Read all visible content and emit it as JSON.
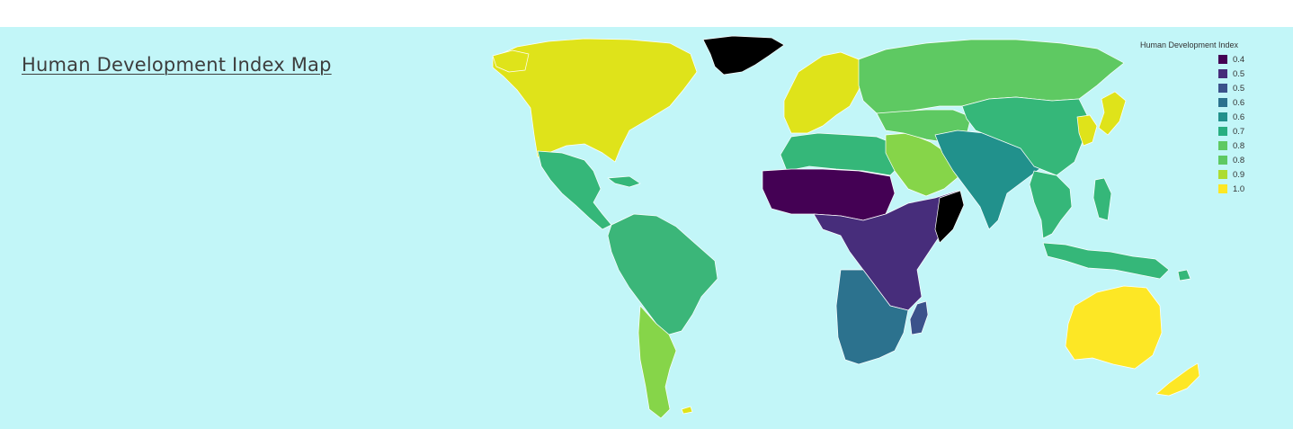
{
  "map": {
    "title": "Human Development Index Map",
    "background_color": "#c2f6f8",
    "no_data_color": "#000000",
    "border_color": "#ffffff"
  },
  "legend": {
    "title": "Human Development Index",
    "items": [
      {
        "label": "0.4",
        "color": "#440154"
      },
      {
        "label": "0.5",
        "color": "#472d7b"
      },
      {
        "label": "0.5",
        "color": "#3b528b"
      },
      {
        "label": "0.6",
        "color": "#2c728e"
      },
      {
        "label": "0.6",
        "color": "#21918c"
      },
      {
        "label": "0.7",
        "color": "#28ae80"
      },
      {
        "label": "0.8",
        "color": "#5ec962"
      },
      {
        "label": "0.8",
        "color": "#5ec962"
      },
      {
        "label": "0.9",
        "color": "#addc30"
      },
      {
        "label": "1.0",
        "color": "#fde725"
      }
    ]
  },
  "regions": [
    {
      "name": "North America",
      "color": "#dfe31a"
    },
    {
      "name": "Greenland",
      "color": "#000000"
    },
    {
      "name": "Mexico and Central America",
      "color": "#35b779"
    },
    {
      "name": "South America",
      "color": "#3bb679"
    },
    {
      "name": "Southern Cone",
      "color": "#86d549"
    },
    {
      "name": "Western Europe",
      "color": "#dfe31a"
    },
    {
      "name": "Russia",
      "color": "#5ec962"
    },
    {
      "name": "North Africa",
      "color": "#35b779"
    },
    {
      "name": "Sahel Africa",
      "color": "#440154"
    },
    {
      "name": "Central and East Africa",
      "color": "#472d7b"
    },
    {
      "name": "Southern Africa",
      "color": "#2c728e"
    },
    {
      "name": "Madagascar",
      "color": "#3b528b"
    },
    {
      "name": "Arabian Peninsula",
      "color": "#86d549"
    },
    {
      "name": "South Asia",
      "color": "#21918c"
    },
    {
      "name": "China and Central Asia",
      "color": "#35b779"
    },
    {
      "name": "Japan and Korea",
      "color": "#dfe31a"
    },
    {
      "name": "Southeast Asia",
      "color": "#35b779"
    },
    {
      "name": "Australia",
      "color": "#fde725"
    },
    {
      "name": "New Zealand",
      "color": "#fde725"
    }
  ]
}
